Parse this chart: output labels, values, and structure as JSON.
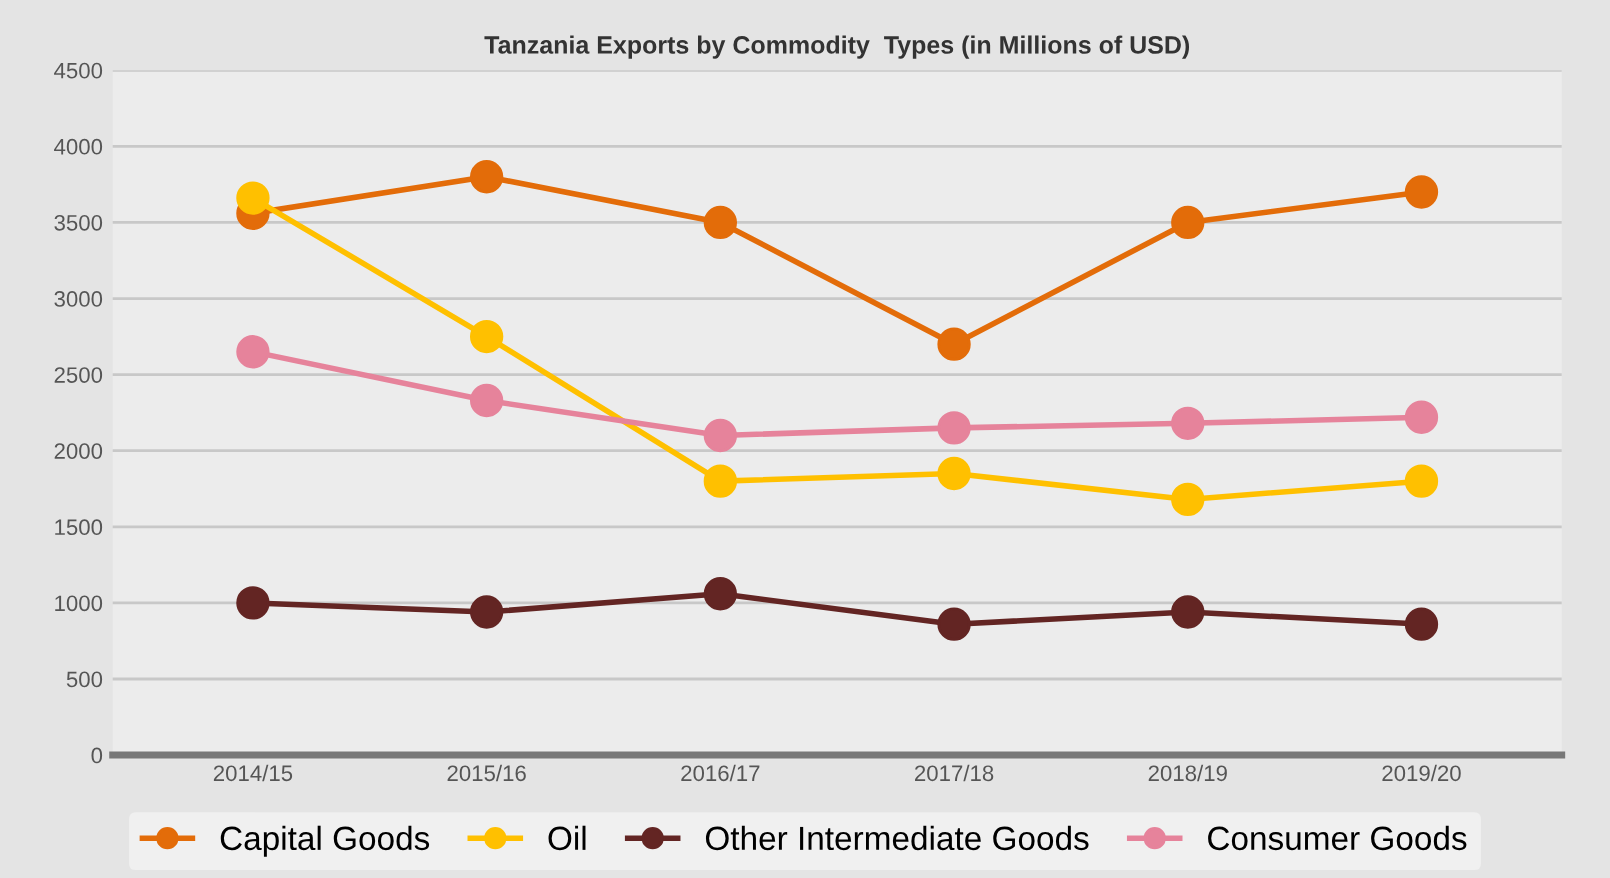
{
  "chart_data": {
    "type": "line",
    "title": "Tanzania Exports by Commodity  Types (in Millions of USD)",
    "categories": [
      "2014/15",
      "2015/16",
      "2016/17",
      "2017/18",
      "2018/19",
      "2019/20"
    ],
    "series": [
      {
        "name": "Capital Goods",
        "color": "#e36c09",
        "values": [
          3560,
          3800,
          3500,
          2700,
          3500,
          3700
        ]
      },
      {
        "name": "Oil",
        "color": "#ffc000",
        "values": [
          3660,
          2750,
          1800,
          1850,
          1680,
          1800
        ]
      },
      {
        "name": "Other Intermediate Goods",
        "color": "#632523",
        "values": [
          1000,
          940,
          1060,
          860,
          940,
          860
        ]
      },
      {
        "name": "Consumer Goods",
        "color": "#e6839b",
        "values": [
          2650,
          2330,
          2100,
          2150,
          2180,
          2220
        ]
      }
    ],
    "ylim": [
      0,
      4500
    ],
    "yticks": [
      0,
      500,
      1000,
      1500,
      2000,
      2500,
      3000,
      3500,
      4000,
      4500
    ],
    "grid": "y",
    "legend": "bottom",
    "marker": "circle",
    "line_style": "solid"
  }
}
